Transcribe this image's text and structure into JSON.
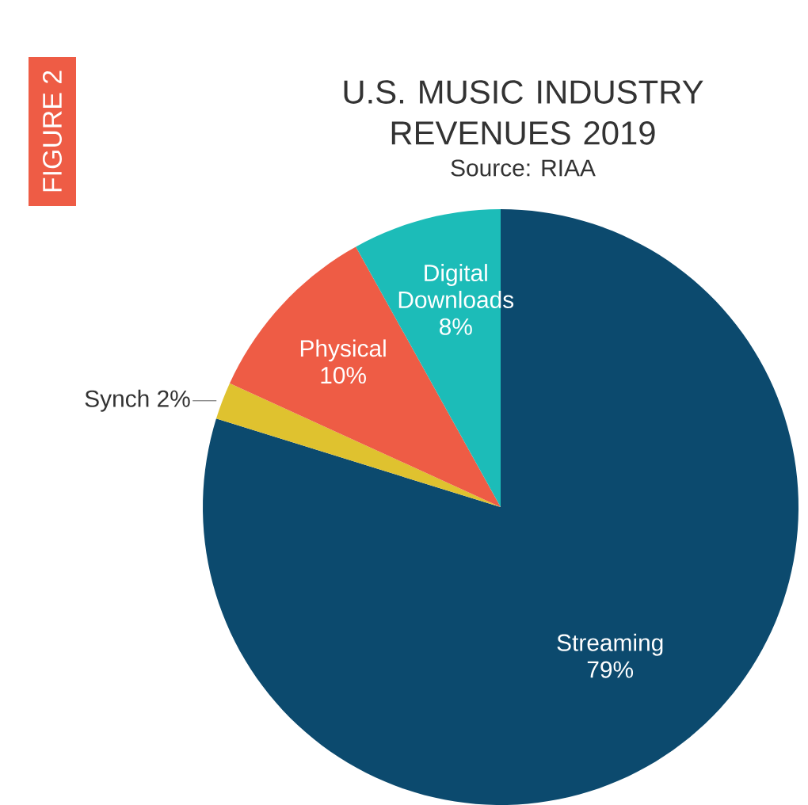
{
  "chart_data": {
    "type": "pie",
    "title": "U.S. MUSIC INDUSTRY REVENUES 2019",
    "annotations": [
      "Source: RIAA",
      "FIGURE 2"
    ],
    "categories": [
      "Streaming",
      "Synch",
      "Physical",
      "Digital Downloads"
    ],
    "values": [
      79,
      2,
      10,
      8
    ],
    "colors": [
      "#0c4a6e",
      "#dfc22f",
      "#ee5c45",
      "#1cbcb8"
    ],
    "value_labels": [
      "79%",
      "2%",
      "10%",
      "8%"
    ]
  }
}
